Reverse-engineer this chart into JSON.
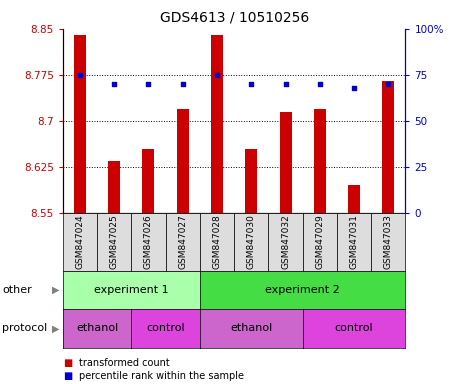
{
  "title": "GDS4613 / 10510256",
  "samples": [
    "GSM847024",
    "GSM847025",
    "GSM847026",
    "GSM847027",
    "GSM847028",
    "GSM847030",
    "GSM847032",
    "GSM847029",
    "GSM847031",
    "GSM847033"
  ],
  "bar_values": [
    8.84,
    8.635,
    8.655,
    8.72,
    8.84,
    8.655,
    8.715,
    8.72,
    8.595,
    8.765
  ],
  "dot_values": [
    75,
    70,
    70,
    70,
    75,
    70,
    70,
    70,
    68,
    70
  ],
  "ylim_left": [
    8.55,
    8.85
  ],
  "ylim_right": [
    0,
    100
  ],
  "yticks_left": [
    8.55,
    8.625,
    8.7,
    8.775,
    8.85
  ],
  "yticks_right": [
    0,
    25,
    50,
    75,
    100
  ],
  "bar_color": "#cc0000",
  "dot_color": "#0000cc",
  "bar_bottom": 8.55,
  "exp1_color": "#aaffaa",
  "exp2_color": "#44dd44",
  "ethanol_color": "#cc66cc",
  "control_color": "#dd44dd",
  "legend_red_label": "transformed count",
  "legend_blue_label": "percentile rank within the sample",
  "xlabel_other": "other",
  "xlabel_protocol": "protocol",
  "experiment1_label": "experiment 1",
  "experiment2_label": "experiment 2",
  "ethanol_label": "ethanol",
  "control_label": "control",
  "title_fontsize": 10,
  "tick_fontsize": 7.5,
  "label_fontsize": 8,
  "sample_tick_fontsize": 6.5
}
